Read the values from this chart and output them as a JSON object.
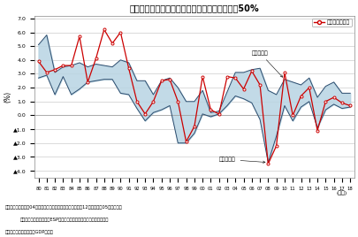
{
  "title": "図表２　実績値が予測レンジから外れる確率は50%",
  "ylabel": "(%)",
  "xlabel_years_label": "(年度)",
  "year_labels": [
    "80",
    "81",
    "82",
    "83",
    "84",
    "85",
    "86",
    "87",
    "88",
    "89",
    "90",
    "91",
    "92",
    "93",
    "94",
    "95",
    "96",
    "97",
    "98",
    "99",
    "00",
    "01",
    "02",
    "03",
    "04",
    "05",
    "06",
    "07",
    "08",
    "09",
    "10",
    "11",
    "12",
    "13",
    "14",
    "15",
    "16",
    "17",
    "18"
  ],
  "actual": [
    3.9,
    3.1,
    3.3,
    3.6,
    3.6,
    5.7,
    2.4,
    4.1,
    6.2,
    5.2,
    6.0,
    3.4,
    1.0,
    0.1,
    1.0,
    2.5,
    2.6,
    1.0,
    -1.9,
    -0.8,
    2.8,
    0.4,
    0.1,
    2.8,
    2.7,
    1.9,
    3.2,
    2.2,
    -3.5,
    -2.2,
    3.1,
    0.0,
    1.4,
    2.0,
    -1.1,
    1.0,
    1.3,
    0.9,
    0.7
  ],
  "max_val": [
    5.1,
    5.8,
    3.1,
    3.5,
    3.6,
    3.8,
    3.5,
    3.7,
    3.6,
    3.5,
    4.0,
    3.8,
    2.5,
    2.5,
    1.5,
    2.5,
    2.7,
    2.0,
    1.0,
    1.0,
    1.8,
    0.2,
    0.3,
    1.7,
    3.1,
    3.1,
    3.3,
    3.4,
    1.8,
    1.5,
    2.6,
    2.4,
    2.2,
    2.7,
    1.3,
    2.1,
    2.4,
    1.6,
    1.6
  ],
  "min_val": [
    2.7,
    2.9,
    1.5,
    2.8,
    1.5,
    1.9,
    2.4,
    2.5,
    2.6,
    2.6,
    1.6,
    1.5,
    0.5,
    -0.4,
    0.2,
    0.4,
    0.7,
    -2.0,
    -2.0,
    -1.3,
    0.1,
    -0.1,
    0.1,
    0.7,
    1.4,
    1.2,
    0.9,
    -0.3,
    -3.4,
    -1.5,
    0.7,
    -0.4,
    0.6,
    1.0,
    -0.9,
    0.4,
    0.8,
    0.5,
    0.6
  ],
  "actual_color": "#cc0000",
  "fill_color": "#b8d4e3",
  "fill_alpha": 0.85,
  "band_edge_color": "#2d4d6e",
  "annotation_max": "予測最大値",
  "annotation_min": "予測最小値",
  "legend_actual": "実績値（速報）",
  "note1": "（注）予測値平均は04年度までは東洋経済統計月報（前年度12月時点）々05年度以降は",
  "note1b": "日本経済研究センター「ESPフォーキャスト調査」。実績値は速報値",
  "note2": "（注）内閣府「四半期別GDP速報」",
  "ylim": [
    -4.5,
    7.2
  ],
  "yticks": [
    7.0,
    6.0,
    5.0,
    4.0,
    3.0,
    2.0,
    1.0,
    0.0,
    -1.0,
    -2.0,
    -3.0,
    -4.0
  ],
  "ytick_labels": [
    "7.0",
    "6.0",
    "5.0",
    "4.0",
    "3.0",
    "2.0",
    "1.0",
    "0.0",
    "▲1.0",
    "▲2.0",
    "▲3.0",
    "▲4.0"
  ],
  "bg_color": "#ffffff",
  "plot_bg_color": "#ffffff",
  "grid_color": "#cccccc"
}
